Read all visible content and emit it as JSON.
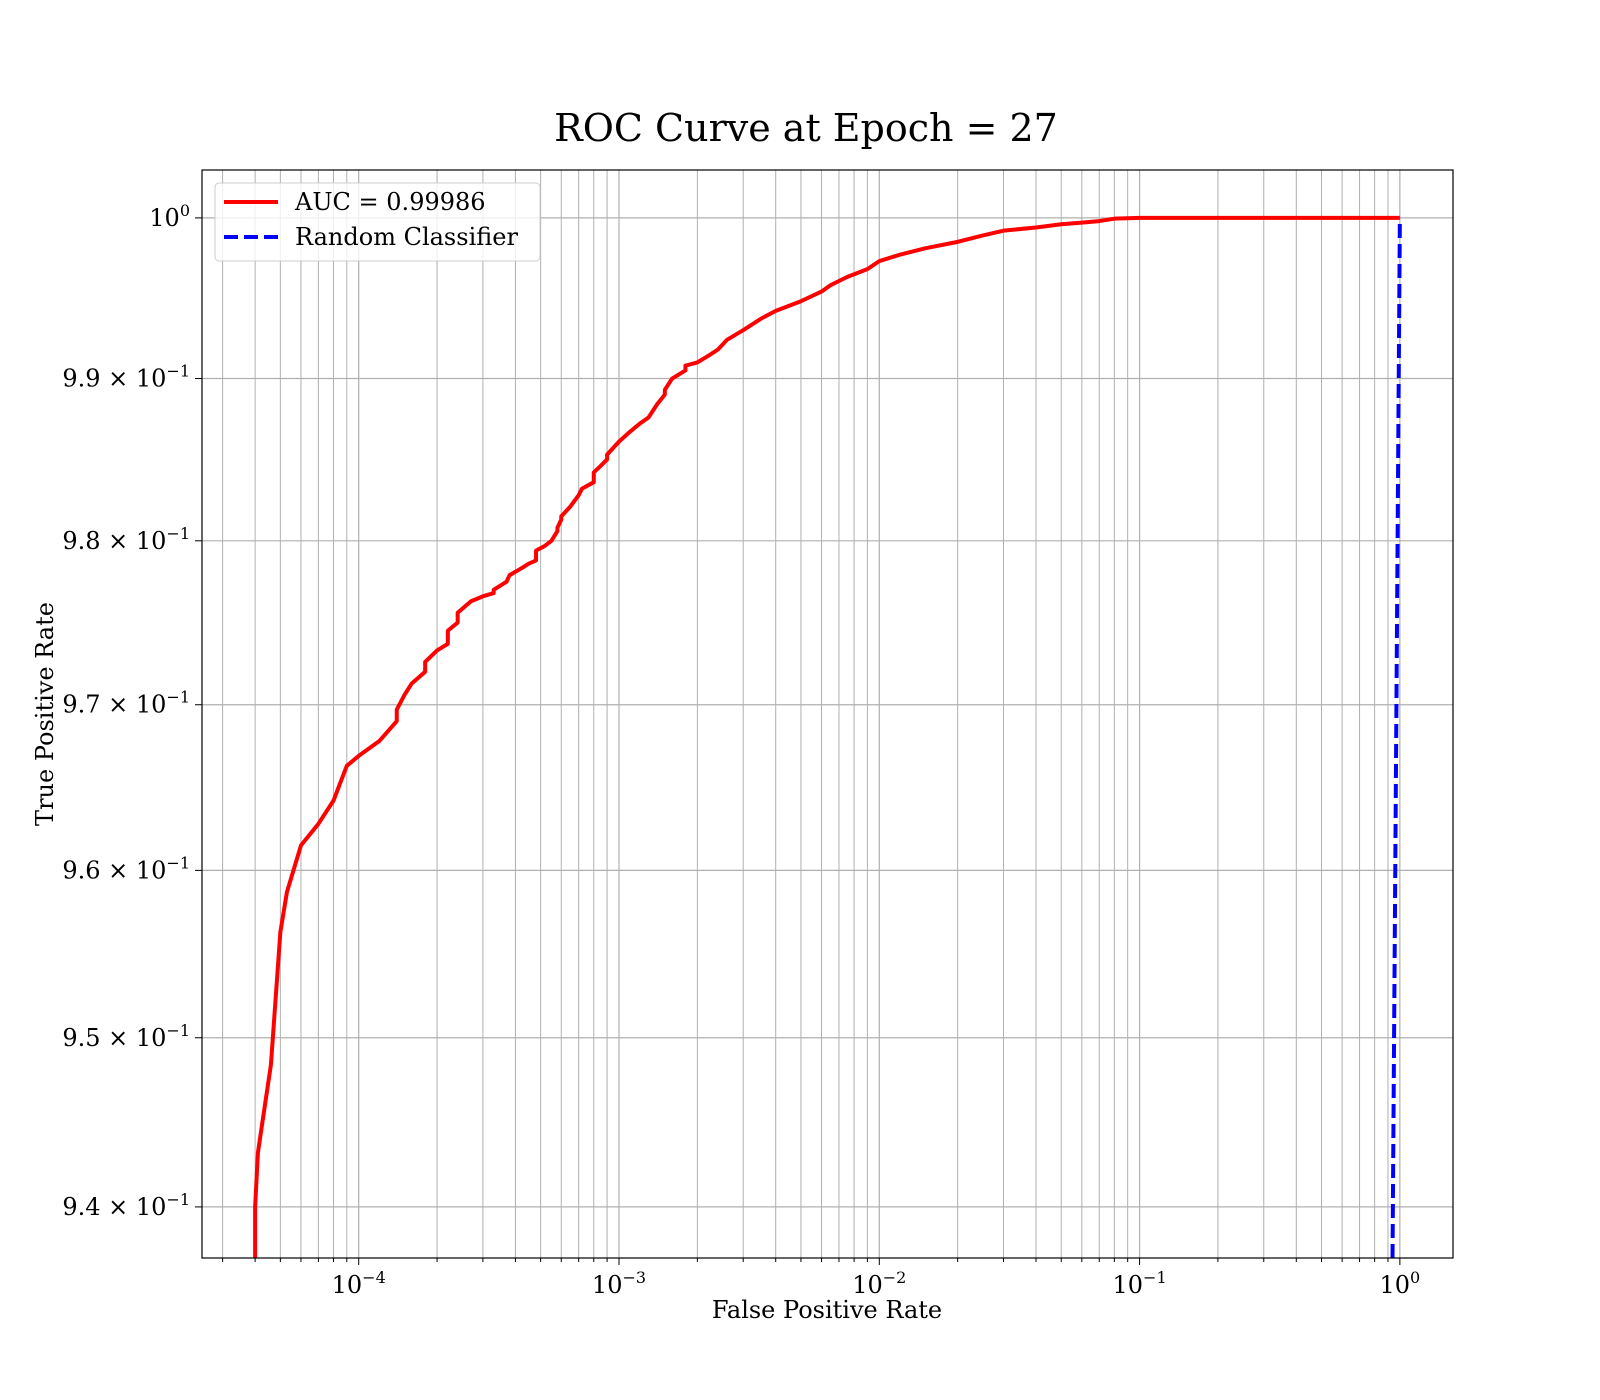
{
  "chart_data": {
    "type": "line",
    "title": "ROC Curve at Epoch = 27",
    "xlabel": "False Positive Rate",
    "ylabel": "True Positive Rate",
    "xscale": "log",
    "yscale": "log",
    "xlim": [
      2.5e-05,
      1.6
    ],
    "ylim": [
      0.937,
      1.003
    ],
    "grid": "both major and minor",
    "legend_placement": "upper left",
    "x_ticks": [
      {
        "value": 0.0001,
        "base": "10",
        "exp": "−4"
      },
      {
        "value": 0.001,
        "base": "10",
        "exp": "−3"
      },
      {
        "value": 0.01,
        "base": "10",
        "exp": "−2"
      },
      {
        "value": 0.1,
        "base": "10",
        "exp": "−1"
      },
      {
        "value": 1,
        "base": "10",
        "exp": "0"
      }
    ],
    "y_ticks": [
      {
        "value": 1.0,
        "mant": "",
        "base": "10",
        "exp": "0"
      },
      {
        "value": 0.99,
        "mant": "9.9 × ",
        "base": "10",
        "exp": "−1"
      },
      {
        "value": 0.98,
        "mant": "9.8 × ",
        "base": "10",
        "exp": "−1"
      },
      {
        "value": 0.97,
        "mant": "9.7 × ",
        "base": "10",
        "exp": "−1"
      },
      {
        "value": 0.96,
        "mant": "9.6 × ",
        "base": "10",
        "exp": "−1"
      },
      {
        "value": 0.95,
        "mant": "9.5 × ",
        "base": "10",
        "exp": "−1"
      },
      {
        "value": 0.94,
        "mant": "9.4 × ",
        "base": "10",
        "exp": "−1"
      }
    ],
    "series": [
      {
        "name": "AUC = 0.99986",
        "color": "#ff0000",
        "style": "solid",
        "x": [
          4e-05,
          4e-05,
          4.1e-05,
          4.6e-05,
          5e-05,
          5.3e-05,
          6e-05,
          7e-05,
          8e-05,
          9e-05,
          0.0001,
          0.00012,
          0.00014,
          0.00014,
          0.00015,
          0.00016,
          0.00018,
          0.00018,
          0.0002,
          0.00022,
          0.00022,
          0.00024,
          0.00024,
          0.00027,
          0.0003,
          0.00033,
          0.00033,
          0.00037,
          0.00038,
          0.00042,
          0.00045,
          0.00048,
          0.00048,
          0.00052,
          0.00055,
          0.00058,
          0.00058,
          0.0006,
          0.0006,
          0.00065,
          0.0007,
          0.00072,
          0.0008,
          0.0008,
          0.00085,
          0.0009,
          0.0009,
          0.001,
          0.0011,
          0.0012,
          0.0013,
          0.0014,
          0.0015,
          0.0015,
          0.0016,
          0.0018,
          0.0018,
          0.002,
          0.0022,
          0.0024,
          0.0026,
          0.003,
          0.0035,
          0.004,
          0.005,
          0.006,
          0.0065,
          0.0075,
          0.009,
          0.01,
          0.012,
          0.015,
          0.02,
          0.025,
          0.03,
          0.04,
          0.05,
          0.06,
          0.07,
          0.08,
          0.1,
          0.2,
          0.5,
          1.0
        ],
        "y": [
          0.937,
          0.94,
          0.9432,
          0.9484,
          0.9563,
          0.9587,
          0.9615,
          0.9628,
          0.9642,
          0.9663,
          0.9669,
          0.9678,
          0.969,
          0.9697,
          0.9706,
          0.9713,
          0.972,
          0.9726,
          0.9733,
          0.9737,
          0.9745,
          0.975,
          0.9756,
          0.9763,
          0.9766,
          0.9768,
          0.977,
          0.9775,
          0.9779,
          0.9783,
          0.9786,
          0.9788,
          0.9794,
          0.9797,
          0.98,
          0.9806,
          0.9808,
          0.9813,
          0.9815,
          0.9821,
          0.9828,
          0.9832,
          0.9836,
          0.9842,
          0.9846,
          0.985,
          0.9853,
          0.9861,
          0.9867,
          0.9872,
          0.9876,
          0.9884,
          0.989,
          0.9893,
          0.99,
          0.9905,
          0.9908,
          0.991,
          0.9914,
          0.9918,
          0.9924,
          0.993,
          0.9937,
          0.9942,
          0.9948,
          0.9954,
          0.9958,
          0.9963,
          0.9968,
          0.9973,
          0.9977,
          0.9981,
          0.9985,
          0.9989,
          0.9992,
          0.9994,
          0.9996,
          0.9997,
          0.9998,
          0.99995,
          1.0,
          1.0,
          1.0,
          1.0
        ]
      },
      {
        "name": "Random Classifier",
        "color": "#0000ff",
        "style": "dashed",
        "x": [
          0.937,
          0.94,
          0.95,
          0.96,
          0.97,
          0.98,
          0.99,
          1.0
        ],
        "y": [
          0.937,
          0.94,
          0.95,
          0.96,
          0.97,
          0.98,
          0.99,
          1.0
        ]
      }
    ]
  }
}
